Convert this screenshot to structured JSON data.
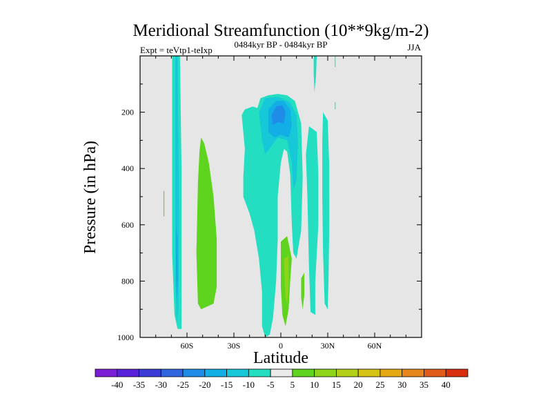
{
  "chart_data": {
    "type": "contour",
    "title": "Meridional Streamfunction (10**9kg/m-2)",
    "subtitle": "0484kyr BP - 0484kyr BP",
    "left_label": "Expt = teVtp1-teIxp",
    "right_label": "JJA",
    "xlabel": "Latitude",
    "ylabel": "Pressure (in hPa)",
    "xlim": [
      -90,
      90
    ],
    "ylim": [
      0,
      1000
    ],
    "y_inverted": true,
    "x_ticks": [
      {
        "value": -60,
        "label": "60S"
      },
      {
        "value": -30,
        "label": "30S"
      },
      {
        "value": 0,
        "label": "0"
      },
      {
        "value": 30,
        "label": "30N"
      },
      {
        "value": 60,
        "label": "60N"
      }
    ],
    "y_ticks": [
      {
        "value": 200,
        "label": "200"
      },
      {
        "value": 400,
        "label": "400"
      },
      {
        "value": 600,
        "label": "600"
      },
      {
        "value": 800,
        "label": "800"
      },
      {
        "value": 1000,
        "label": "1000"
      }
    ],
    "background_color": "#e6e6e6",
    "colorbar": {
      "labels": [
        "-40",
        "-35",
        "-30",
        "-25",
        "-20",
        "-15",
        "-10",
        "-5",
        "5",
        "10",
        "15",
        "20",
        "25",
        "30",
        "35",
        "40"
      ],
      "colors": [
        "#7a1fd6",
        "#5a22d8",
        "#3b3bd6",
        "#2f66e0",
        "#1f8de8",
        "#12aee6",
        "#16c8d8",
        "#24dec2",
        "#eaeaea",
        "#5ed41e",
        "#8ed41a",
        "#b4cf18",
        "#d6c214",
        "#e6a812",
        "#e6861a",
        "#e05a18",
        "#d8300e"
      ]
    },
    "regions": [
      {
        "name": "sh-polar-negative-band",
        "level": -10,
        "color": "#24dec2",
        "points": [
          [
            -69.5,
            0
          ],
          [
            -64.5,
            0
          ],
          [
            -63.5,
            400
          ],
          [
            -63.5,
            800
          ],
          [
            -63.5,
            970
          ],
          [
            -66,
            970
          ],
          [
            -68,
            920
          ],
          [
            -69.5,
            700
          ],
          [
            -69.5,
            300
          ]
        ]
      },
      {
        "name": "sh-polar-inner-core",
        "level": -15,
        "color": "#16c8d8",
        "points": [
          [
            -67.5,
            0
          ],
          [
            -66,
            0
          ],
          [
            -65.5,
            300
          ],
          [
            -65,
            600
          ],
          [
            -65.5,
            900
          ],
          [
            -66.5,
            950
          ],
          [
            -67.5,
            800
          ],
          [
            -67.5,
            400
          ]
        ]
      },
      {
        "name": "sh-polar-deep-core",
        "level": -20,
        "color": "#12aee6",
        "points": [
          [
            -67,
            600
          ],
          [
            -66,
            650
          ],
          [
            -65.8,
            800
          ],
          [
            -66.5,
            860
          ],
          [
            -67,
            800
          ]
        ]
      },
      {
        "name": "sh-isolated-fragment",
        "level": 5,
        "color": "#5ed41e",
        "points": [
          [
            -75,
            480
          ],
          [
            -74.5,
            480
          ],
          [
            -74.5,
            570
          ],
          [
            -75,
            570
          ]
        ]
      },
      {
        "name": "sh-midlat-positive-cell",
        "level": 5,
        "color": "#5ed41e",
        "points": [
          [
            -51,
            290
          ],
          [
            -49,
            310
          ],
          [
            -46,
            380
          ],
          [
            -43,
            500
          ],
          [
            -41,
            650
          ],
          [
            -41,
            820
          ],
          [
            -43,
            880
          ],
          [
            -47,
            890
          ],
          [
            -51,
            900
          ],
          [
            -53,
            880
          ],
          [
            -54,
            700
          ],
          [
            -53,
            450
          ],
          [
            -52,
            340
          ]
        ]
      },
      {
        "name": "tropical-negative-region",
        "level": -10,
        "color": "#24dec2",
        "points": [
          [
            -25,
            210
          ],
          [
            -23,
            190
          ],
          [
            -18,
            180
          ],
          [
            -15,
            185
          ],
          [
            -13,
            150
          ],
          [
            -8,
            140
          ],
          [
            -2,
            135
          ],
          [
            4,
            140
          ],
          [
            9,
            160
          ],
          [
            13,
            240
          ],
          [
            14,
            430
          ],
          [
            13,
            620
          ],
          [
            10,
            720
          ],
          [
            8,
            700
          ],
          [
            7,
            600
          ],
          [
            6,
            420
          ],
          [
            4,
            340
          ],
          [
            2,
            330
          ],
          [
            0,
            380
          ],
          [
            -2,
            500
          ],
          [
            -2,
            650
          ],
          [
            -3,
            800
          ],
          [
            -5,
            930
          ],
          [
            -7,
            990
          ],
          [
            -10,
            1000
          ],
          [
            -12,
            960
          ],
          [
            -12,
            840
          ],
          [
            -14,
            720
          ],
          [
            -17,
            620
          ],
          [
            -20,
            560
          ],
          [
            -24,
            500
          ],
          [
            -24,
            430
          ],
          [
            -23,
            330
          ]
        ]
      },
      {
        "name": "tropical-core-15",
        "level": -15,
        "color": "#16c8d8",
        "points": [
          [
            -14,
            200
          ],
          [
            -10,
            150
          ],
          [
            -2,
            145
          ],
          [
            6,
            165
          ],
          [
            10,
            210
          ],
          [
            11,
            300
          ],
          [
            10,
            440
          ],
          [
            8,
            480
          ],
          [
            7,
            380
          ],
          [
            4,
            300
          ],
          [
            -2,
            290
          ],
          [
            -6,
            320
          ],
          [
            -10,
            350
          ],
          [
            -12,
            300
          ]
        ]
      },
      {
        "name": "tropical-core-20",
        "level": -20,
        "color": "#12aee6",
        "points": [
          [
            -8,
            190
          ],
          [
            -3,
            160
          ],
          [
            2,
            160
          ],
          [
            6,
            190
          ],
          [
            7,
            250
          ],
          [
            5,
            290
          ],
          [
            0,
            280
          ],
          [
            -4,
            290
          ],
          [
            -8,
            270
          ]
        ]
      },
      {
        "name": "tropical-core-25",
        "level": -25,
        "color": "#1f8de8",
        "points": [
          [
            -6,
            210
          ],
          [
            -3,
            180
          ],
          [
            1,
            175
          ],
          [
            3,
            200
          ],
          [
            2,
            240
          ],
          [
            -2,
            235
          ],
          [
            -5,
            245
          ]
        ]
      },
      {
        "name": "tropical-positive-core",
        "level": 5,
        "color": "#5ed41e",
        "points": [
          [
            0,
            660
          ],
          [
            4,
            640
          ],
          [
            7,
            720
          ],
          [
            6,
            800
          ],
          [
            5,
            900
          ],
          [
            3,
            960
          ],
          [
            1,
            920
          ],
          [
            0,
            820
          ]
        ]
      },
      {
        "name": "tropical-positive-center",
        "level": 10,
        "color": "#8ed41a",
        "points": [
          [
            2,
            720
          ],
          [
            5,
            710
          ],
          [
            5,
            820
          ],
          [
            4,
            880
          ],
          [
            3,
            860
          ]
        ]
      },
      {
        "name": "nh-subtropical-negative",
        "level": -10,
        "color": "#24dec2",
        "points": [
          [
            18,
            250
          ],
          [
            23,
            270
          ],
          [
            24,
            420
          ],
          [
            24,
            600
          ],
          [
            22,
            800
          ],
          [
            22,
            920
          ],
          [
            19,
            910
          ],
          [
            18,
            750
          ],
          [
            17,
            500
          ],
          [
            16,
            350
          ]
        ]
      },
      {
        "name": "nh-midlat-negative",
        "level": -10,
        "color": "#24dec2",
        "points": [
          [
            27,
            200
          ],
          [
            30,
            230
          ],
          [
            31,
            400
          ],
          [
            31,
            600
          ],
          [
            30.5,
            800
          ],
          [
            30,
            900
          ],
          [
            28,
            880
          ],
          [
            27,
            700
          ],
          [
            26.5,
            500
          ],
          [
            26.5,
            300
          ]
        ]
      },
      {
        "name": "nh-subtropical-positive",
        "level": 5,
        "color": "#5ed41e",
        "points": [
          [
            13,
            790
          ],
          [
            15,
            770
          ],
          [
            15,
            850
          ],
          [
            14,
            900
          ],
          [
            13,
            860
          ]
        ]
      },
      {
        "name": "nh-streak-upper",
        "level": -10,
        "color": "#24dec2",
        "points": [
          [
            21,
            0
          ],
          [
            23,
            0
          ],
          [
            22.5,
            70
          ],
          [
            21.5,
            130
          ],
          [
            21,
            60
          ]
        ]
      },
      {
        "name": "nh-streak-thin",
        "level": -10,
        "color": "#24dec2",
        "points": [
          [
            34.5,
            0
          ],
          [
            35,
            0
          ],
          [
            35,
            40
          ],
          [
            34.5,
            40
          ]
        ]
      },
      {
        "name": "nh-streak-thin-2",
        "level": -10,
        "color": "#24dec2",
        "points": [
          [
            34.5,
            165
          ],
          [
            35,
            165
          ],
          [
            35,
            190
          ],
          [
            34.5,
            190
          ]
        ]
      }
    ]
  }
}
